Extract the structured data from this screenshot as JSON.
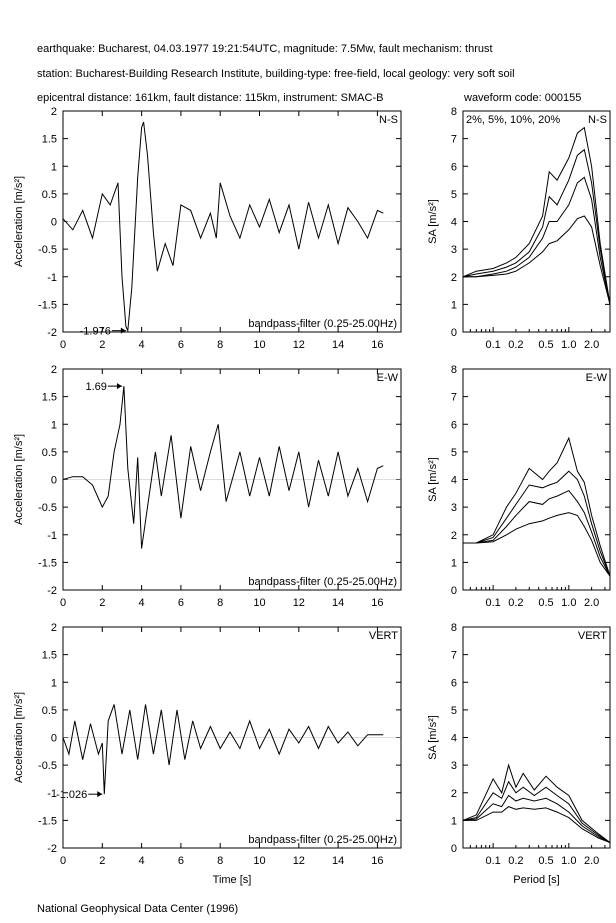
{
  "header": {
    "line1": "earthquake: Bucharest, 04.03.1977 19:21:54UTC, magnitude: 7.5Mw, fault mechanism: thrust",
    "line2": "station: Bucharest-Building Research Institute, building-type: free-field, local geology: very soft soil",
    "line3": "epicentral distance: 161km, fault distance: 115km, instrument: SMAC-B",
    "waveform_code": "waveform code: 000155"
  },
  "footer": "National Geophysical Data Center (1996)",
  "colors": {
    "line": "#000000",
    "background": "#ffffff"
  },
  "chart_data": [
    {
      "type": "line",
      "panel": "acceleration",
      "component": "N-S",
      "ylabel": "Acceleration [m/s²]",
      "xlabel": "",
      "filter_label": "bandpass-filter (0.25-25.00Hz)",
      "peak": {
        "t": 3.3,
        "value": -1.976,
        "label": "-1.976"
      },
      "xlim": [
        0,
        17.2
      ],
      "ylim": [
        -2,
        2
      ],
      "xticks": [
        0,
        2,
        4,
        6,
        8,
        10,
        12,
        14,
        16
      ],
      "yticks": [
        -2,
        -1.5,
        -1,
        -0.5,
        0,
        0.5,
        1,
        1.5,
        2
      ],
      "x": [
        0,
        0.5,
        1.0,
        1.5,
        2.0,
        2.4,
        2.8,
        3.0,
        3.2,
        3.3,
        3.5,
        3.8,
        4.0,
        4.1,
        4.3,
        4.6,
        4.8,
        5.2,
        5.6,
        6.0,
        6.5,
        7.0,
        7.5,
        7.8,
        8.0,
        8.5,
        9.0,
        9.5,
        10.0,
        10.5,
        11.0,
        11.5,
        12.0,
        12.5,
        13.0,
        13.5,
        14.0,
        14.5,
        15.0,
        15.5,
        16.0,
        16.3
      ],
      "y": [
        0.05,
        -0.15,
        0.2,
        -0.3,
        0.5,
        0.3,
        0.7,
        -1.0,
        -1.9,
        -1.976,
        -1.2,
        0.8,
        1.7,
        1.8,
        1.2,
        -0.2,
        -0.9,
        -0.4,
        -0.8,
        0.3,
        0.2,
        -0.3,
        0.15,
        -0.3,
        0.7,
        0.1,
        -0.3,
        0.3,
        -0.1,
        0.4,
        -0.2,
        0.3,
        -0.5,
        0.35,
        -0.3,
        0.3,
        -0.4,
        0.25,
        0.0,
        -0.3,
        0.2,
        0.15
      ]
    },
    {
      "type": "line",
      "panel": "response-spectrum",
      "component": "N-S",
      "ylabel": "SA [m/s²]",
      "xlabel": "",
      "damping_label": "2%, 5%, 10%, 20%",
      "xticks": [
        "0.1",
        "0.2",
        "0.5",
        "1.0",
        "2.0"
      ],
      "ylim": [
        0,
        8
      ],
      "yticks": [
        0,
        1,
        2,
        3,
        4,
        5,
        6,
        7,
        8
      ],
      "x_period": [
        0.04,
        0.06,
        0.1,
        0.15,
        0.2,
        0.3,
        0.45,
        0.55,
        0.7,
        1.0,
        1.3,
        1.6,
        2.0,
        2.6,
        3.5
      ],
      "series": [
        {
          "values": [
            2.0,
            2.2,
            2.3,
            2.5,
            2.7,
            3.2,
            4.2,
            5.8,
            5.5,
            6.3,
            7.2,
            7.4,
            6.0,
            3.2,
            1.0
          ]
        },
        {
          "values": [
            2.0,
            2.1,
            2.2,
            2.35,
            2.5,
            2.9,
            3.8,
            4.9,
            4.6,
            5.5,
            6.4,
            6.6,
            5.4,
            3.0,
            1.0
          ]
        },
        {
          "values": [
            2.0,
            2.0,
            2.1,
            2.2,
            2.35,
            2.7,
            3.4,
            4.0,
            4.0,
            4.6,
            5.4,
            5.6,
            4.8,
            2.7,
            1.0
          ]
        },
        {
          "values": [
            2.0,
            2.0,
            2.05,
            2.1,
            2.2,
            2.5,
            2.9,
            3.2,
            3.3,
            3.7,
            4.1,
            4.2,
            3.8,
            2.4,
            1.0
          ]
        }
      ]
    },
    {
      "type": "line",
      "panel": "acceleration",
      "component": "E-W",
      "ylabel": "Acceleration [m/s²]",
      "xlabel": "",
      "filter_label": "bandpass-filter (0.25-25.00Hz)",
      "peak": {
        "t": 3.1,
        "value": 1.69,
        "label": "1.69"
      },
      "xlim": [
        0,
        17.2
      ],
      "ylim": [
        -2,
        2
      ],
      "xticks": [
        0,
        2,
        4,
        6,
        8,
        10,
        12,
        14,
        16
      ],
      "yticks": [
        -2,
        -1.5,
        -1,
        -0.5,
        0,
        0.5,
        1,
        1.5,
        2
      ],
      "x": [
        0,
        0.5,
        1.0,
        1.5,
        2.0,
        2.3,
        2.6,
        2.9,
        3.1,
        3.3,
        3.6,
        3.8,
        4.0,
        4.3,
        4.7,
        5.0,
        5.5,
        6.0,
        6.5,
        7.0,
        7.5,
        7.9,
        8.3,
        9.0,
        9.5,
        10.0,
        10.5,
        11.0,
        11.5,
        12.0,
        12.5,
        13.0,
        13.5,
        14.0,
        14.5,
        15.0,
        15.5,
        16.0,
        16.3
      ],
      "y": [
        0.0,
        0.05,
        0.05,
        -0.1,
        -0.5,
        -0.3,
        0.5,
        1.0,
        1.69,
        0.2,
        -0.8,
        0.4,
        -1.25,
        -0.5,
        0.5,
        -0.3,
        0.8,
        -0.7,
        0.6,
        -0.2,
        0.5,
        1.0,
        -0.4,
        0.5,
        -0.3,
        0.4,
        -0.3,
        0.6,
        -0.2,
        0.5,
        -0.5,
        0.35,
        -0.3,
        0.5,
        -0.3,
        0.2,
        -0.4,
        0.2,
        0.25
      ]
    },
    {
      "type": "line",
      "panel": "response-spectrum",
      "component": "E-W",
      "ylabel": "SA [m/s²]",
      "xlabel": "",
      "xticks": [
        "0.1",
        "0.2",
        "0.5",
        "1.0",
        "2.0"
      ],
      "ylim": [
        0,
        8
      ],
      "yticks": [
        0,
        1,
        2,
        3,
        4,
        5,
        6,
        7,
        8
      ],
      "x_period": [
        0.04,
        0.06,
        0.1,
        0.15,
        0.2,
        0.3,
        0.45,
        0.55,
        0.7,
        1.0,
        1.3,
        1.6,
        2.0,
        2.6,
        3.5
      ],
      "series": [
        {
          "values": [
            1.7,
            1.7,
            2.0,
            3.0,
            3.5,
            4.4,
            4.0,
            4.3,
            4.6,
            5.5,
            4.3,
            3.9,
            2.7,
            1.6,
            0.5
          ]
        },
        {
          "values": [
            1.7,
            1.7,
            1.9,
            2.6,
            3.1,
            3.8,
            3.7,
            3.8,
            3.9,
            4.3,
            4.0,
            3.4,
            2.4,
            1.4,
            0.5
          ]
        },
        {
          "values": [
            1.7,
            1.7,
            1.8,
            2.3,
            2.7,
            3.2,
            3.1,
            3.3,
            3.4,
            3.6,
            3.2,
            2.8,
            2.1,
            1.2,
            0.5
          ]
        },
        {
          "values": [
            1.7,
            1.7,
            1.75,
            2.0,
            2.2,
            2.4,
            2.5,
            2.6,
            2.7,
            2.8,
            2.7,
            2.3,
            1.8,
            1.0,
            0.5
          ]
        }
      ]
    },
    {
      "type": "line",
      "panel": "acceleration",
      "component": "VERT",
      "ylabel": "Acceleration [m/s²]",
      "xlabel": "Time [s]",
      "filter_label": "bandpass-filter (0.25-25.00Hz)",
      "peak": {
        "t": 2.1,
        "value": -1.026,
        "label": "-1.026"
      },
      "xlim": [
        0,
        17.2
      ],
      "ylim": [
        -2,
        2
      ],
      "xticks": [
        0,
        2,
        4,
        6,
        8,
        10,
        12,
        14,
        16
      ],
      "yticks": [
        -2,
        -1.5,
        -1,
        -0.5,
        0,
        0.5,
        1,
        1.5,
        2
      ],
      "x": [
        0,
        0.3,
        0.6,
        1.0,
        1.4,
        1.8,
        2.0,
        2.1,
        2.3,
        2.6,
        3.0,
        3.4,
        3.8,
        4.2,
        4.6,
        5.0,
        5.4,
        5.8,
        6.2,
        6.6,
        7.0,
        7.5,
        8.0,
        8.5,
        9.0,
        9.5,
        10.0,
        10.5,
        11.0,
        11.5,
        12.0,
        12.5,
        13.0,
        13.5,
        14.0,
        14.5,
        15.0,
        15.5,
        16.0,
        16.3
      ],
      "y": [
        0.0,
        -0.3,
        0.3,
        -0.4,
        0.25,
        -0.3,
        -0.1,
        -1.026,
        0.3,
        0.6,
        -0.3,
        0.5,
        -0.4,
        0.6,
        -0.3,
        0.5,
        -0.5,
        0.5,
        -0.4,
        0.3,
        -0.2,
        0.2,
        -0.2,
        0.1,
        -0.2,
        0.3,
        -0.2,
        0.15,
        -0.3,
        0.15,
        -0.1,
        0.2,
        -0.2,
        0.2,
        -0.1,
        0.1,
        -0.15,
        0.05,
        0.05,
        0.05
      ]
    },
    {
      "type": "line",
      "panel": "response-spectrum",
      "component": "VERT",
      "ylabel": "SA [m/s²]",
      "xlabel": "Period [s]",
      "xticks": [
        "0.1",
        "0.2",
        "0.5",
        "1.0",
        "2.0"
      ],
      "ylim": [
        0,
        8
      ],
      "yticks": [
        0,
        1,
        2,
        3,
        4,
        5,
        6,
        7,
        8
      ],
      "x_period": [
        0.04,
        0.06,
        0.1,
        0.13,
        0.16,
        0.2,
        0.25,
        0.35,
        0.5,
        0.7,
        1.0,
        1.5,
        2.5,
        3.5
      ],
      "series": [
        {
          "values": [
            1.0,
            1.2,
            2.5,
            2.0,
            3.0,
            2.2,
            2.7,
            2.1,
            2.6,
            2.2,
            1.9,
            1.0,
            0.5,
            0.2
          ]
        },
        {
          "values": [
            1.0,
            1.1,
            2.0,
            1.8,
            2.4,
            2.0,
            2.2,
            1.9,
            2.2,
            1.9,
            1.6,
            0.9,
            0.45,
            0.2
          ]
        },
        {
          "values": [
            1.0,
            1.05,
            1.6,
            1.5,
            1.9,
            1.7,
            1.8,
            1.7,
            1.8,
            1.6,
            1.3,
            0.8,
            0.4,
            0.2
          ]
        },
        {
          "values": [
            1.0,
            1.0,
            1.3,
            1.3,
            1.5,
            1.4,
            1.45,
            1.4,
            1.45,
            1.3,
            1.1,
            0.7,
            0.35,
            0.2
          ]
        }
      ]
    }
  ]
}
